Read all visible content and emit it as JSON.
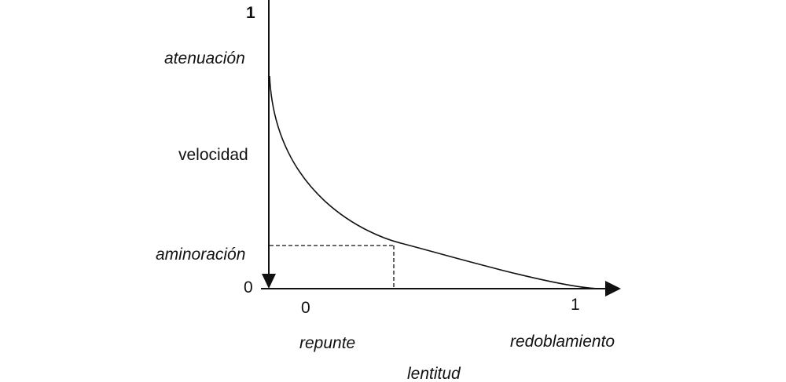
{
  "diagram": {
    "y_axis": {
      "top_value": "1",
      "bottom_value": "0",
      "top_label": "atenuación",
      "middle_label": "velocidad",
      "marker_label": "aminoración"
    },
    "x_axis": {
      "left_value": "0",
      "right_value": "1",
      "left_label": "repunte",
      "right_label": "redoblamiento",
      "axis_title": "lentitud"
    },
    "colors": {
      "ink": "#111111",
      "background": "#ffffff"
    }
  }
}
